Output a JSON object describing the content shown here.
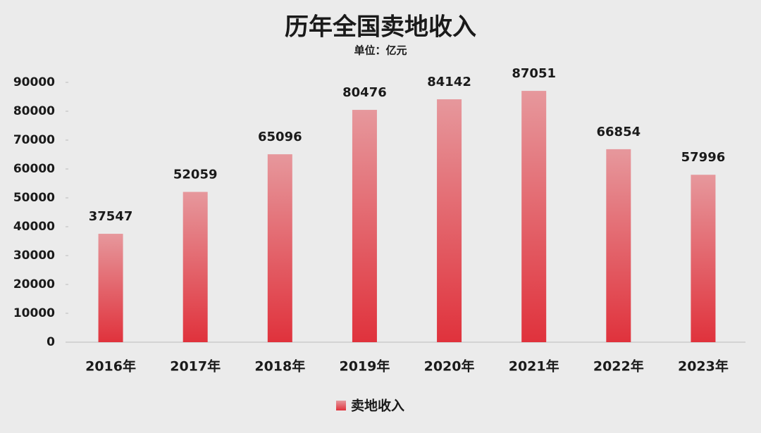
{
  "chart_data": {
    "type": "bar",
    "title": "历年全国卖地收入",
    "subtitle": "单位：亿元",
    "categories": [
      "2016年",
      "2017年",
      "2018年",
      "2019年",
      "2020年",
      "2021年",
      "2022年",
      "2023年"
    ],
    "series": [
      {
        "name": "卖地收入",
        "color": "#e0323c",
        "values": [
          37547,
          52059,
          65096,
          80476,
          84142,
          87051,
          66854,
          57996
        ]
      }
    ],
    "ylim": [
      0,
      90000
    ],
    "yticks": [
      0,
      10000,
      20000,
      30000,
      40000,
      50000,
      60000,
      70000,
      80000,
      90000
    ],
    "legend": "bottom"
  }
}
